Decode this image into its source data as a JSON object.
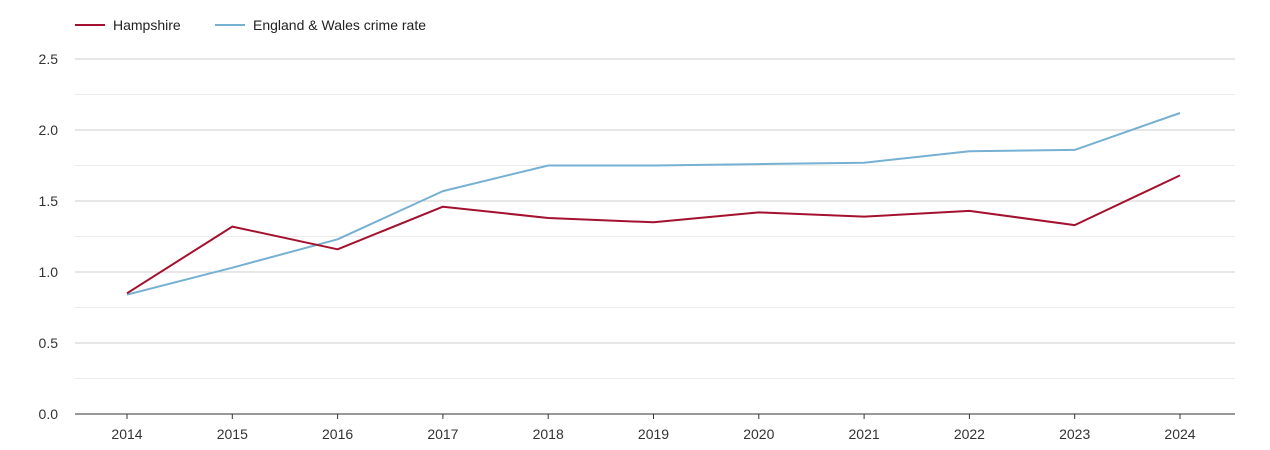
{
  "chart_data": {
    "type": "line",
    "title": "",
    "xlabel": "",
    "ylabel": "",
    "categories": [
      "2014",
      "2015",
      "2016",
      "2017",
      "2018",
      "2019",
      "2020",
      "2021",
      "2022",
      "2023",
      "2024"
    ],
    "ylim": [
      0,
      2.5
    ],
    "y_ticks": [
      "0.0",
      "0.5",
      "1.0",
      "1.5",
      "2.0",
      "2.5"
    ],
    "grid": true,
    "legend_position": "top-left",
    "series": [
      {
        "name": "Hampshire",
        "color": "#a3112e",
        "values": [
          0.85,
          1.32,
          1.16,
          1.46,
          1.38,
          1.35,
          1.42,
          1.39,
          1.43,
          1.33,
          1.68
        ]
      },
      {
        "name": "England & Wales crime rate",
        "color": "#76b0d3",
        "values": [
          0.84,
          1.03,
          1.23,
          1.57,
          1.75,
          1.75,
          1.76,
          1.77,
          1.85,
          1.86,
          2.12
        ]
      }
    ]
  }
}
